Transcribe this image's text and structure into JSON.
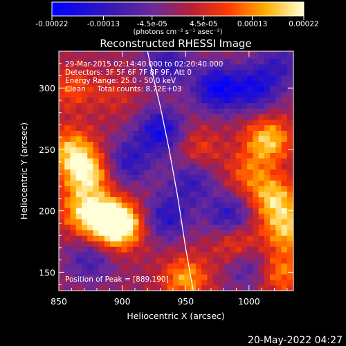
{
  "chart_data": {
    "type": "heatmap",
    "title": "Reconstructed RHESSI Image",
    "xlabel": "Heliocentric X (arcsec)",
    "ylabel": "Heliocentric Y (arcsec)",
    "xlim": [
      850,
      1035
    ],
    "ylim": [
      135,
      330
    ],
    "x_ticks": [
      850,
      900,
      950,
      1000
    ],
    "y_ticks": [
      150,
      200,
      250,
      300
    ],
    "colorbar": {
      "range": [
        -0.00022,
        0.00022
      ],
      "tick_labels": [
        "-0.00022",
        "-0.00013",
        "-4.5e-05",
        "4.5e-05",
        "0.00013",
        "0.00022"
      ],
      "units_label": "(photons cm⁻² s⁻¹ asec⁻²)",
      "colormap": "blue-purple-red-yellow-white"
    },
    "annotations": [
      "29-Mar-2015 02:14:40.000 to 02:20:40.000",
      "Detectors: 3F 5F 6F 7F 8F 9F, Att 0",
      "Energy Range: 25.0 - 50.0 keV",
      "Clean     Total counts: 8.72E+03"
    ],
    "peak_label": "Position of Peak = [889,190]",
    "limb_curve": {
      "x": [
        917,
        922,
        930,
        937,
        944,
        950,
        956
      ],
      "y": [
        345,
        320,
        285,
        250,
        210,
        170,
        135
      ]
    },
    "sources": [
      {
        "x": 860,
        "y": 250,
        "value": 0.00016
      },
      {
        "x": 872,
        "y": 230,
        "value": 0.0002
      },
      {
        "x": 888,
        "y": 192,
        "value": 0.00022
      },
      {
        "x": 900,
        "y": 188,
        "value": 0.00018
      },
      {
        "x": 868,
        "y": 200,
        "value": 0.00014
      },
      {
        "x": 950,
        "y": 145,
        "value": 0.00015
      },
      {
        "x": 990,
        "y": 175,
        "value": 0.00012
      },
      {
        "x": 1015,
        "y": 258,
        "value": 0.00018
      },
      {
        "x": 1020,
        "y": 210,
        "value": 0.00017
      },
      {
        "x": 1030,
        "y": 185,
        "value": 0.00016
      },
      {
        "x": 1025,
        "y": 150,
        "value": 0.00013
      },
      {
        "x": 1000,
        "y": 230,
        "value": 0.0001
      },
      {
        "x": 960,
        "y": 250,
        "value": 8e-05
      },
      {
        "x": 860,
        "y": 300,
        "value": 9e-05
      },
      {
        "x": 895,
        "y": 295,
        "value": 5e-05
      }
    ],
    "sinks": [
      {
        "x": 930,
        "y": 265,
        "value": -0.00018
      },
      {
        "x": 975,
        "y": 300,
        "value": -0.0002
      },
      {
        "x": 1005,
        "y": 300,
        "value": -0.00016
      },
      {
        "x": 935,
        "y": 195,
        "value": -0.00014
      },
      {
        "x": 985,
        "y": 195,
        "value": -0.00015
      },
      {
        "x": 905,
        "y": 240,
        "value": -0.00013
      },
      {
        "x": 955,
        "y": 225,
        "value": -0.00012
      },
      {
        "x": 1000,
        "y": 155,
        "value": -0.0001
      },
      {
        "x": 875,
        "y": 160,
        "value": -0.0001
      },
      {
        "x": 935,
        "y": 320,
        "value": -0.00012
      },
      {
        "x": 1025,
        "y": 320,
        "value": -0.0001
      }
    ]
  },
  "footer_date": "20-May-2022 04:27",
  "colors": {
    "background": "#000000",
    "text": "#ffffff",
    "limb": "#ffffff"
  }
}
